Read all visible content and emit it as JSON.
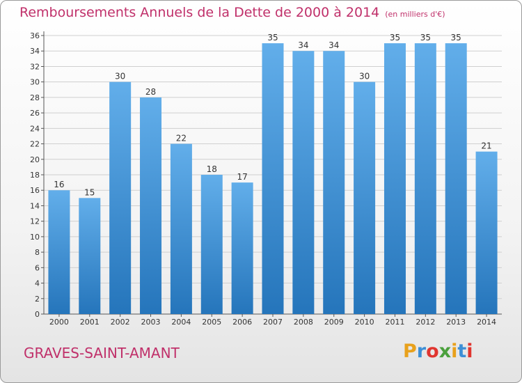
{
  "chart_data": {
    "type": "bar",
    "title": "Remboursements Annuels de la Dette de 2000 à 2014",
    "unit_note": "(en milliers d'€)",
    "categories": [
      "2000",
      "2001",
      "2002",
      "2003",
      "2004",
      "2005",
      "2006",
      "2007",
      "2008",
      "2009",
      "2010",
      "2011",
      "2012",
      "2013",
      "2014"
    ],
    "values": [
      16,
      15,
      30,
      28,
      22,
      18,
      17,
      35,
      34,
      34,
      30,
      35,
      35,
      35,
      21
    ],
    "ylim": [
      0,
      36
    ],
    "ytick_step": 2,
    "xlabel": "",
    "ylabel": "",
    "grid": true,
    "colors": {
      "bar_top": "#62aeea",
      "bar_bottom": "#2575bb",
      "grid": "#cfcfcf",
      "accent": "#c0306a"
    }
  },
  "footer": {
    "commune": "GRAVES-SAINT-AMANT",
    "logo": "Proxiti",
    "logo_colors": [
      "#e8a11c",
      "#3d8fd6",
      "#e0352f",
      "#4aa03c",
      "#e8a11c",
      "#3d8fd6",
      "#e0352f"
    ]
  }
}
